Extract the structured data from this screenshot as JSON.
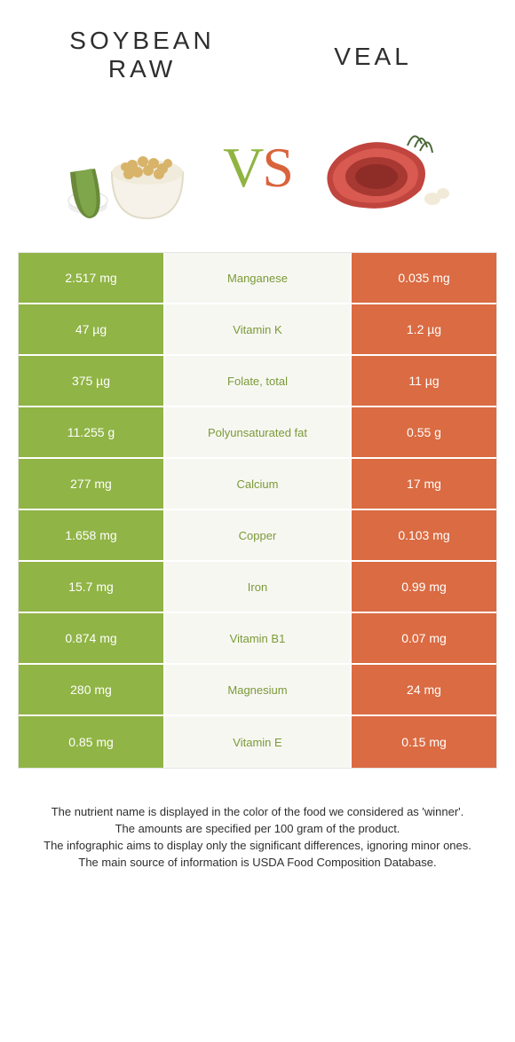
{
  "colors": {
    "left": "#90b445",
    "right": "#da6b42",
    "mid_bg": "#f7f7f2",
    "nutrient_left_winner": "#7a9a38",
    "nutrient_right_winner": "#c25a34"
  },
  "header": {
    "left_line1": "SOYBEAN",
    "left_line2": "RAW",
    "right": "VEAL",
    "vs_v": "V",
    "vs_s": "S"
  },
  "rows": [
    {
      "left": "2.517 mg",
      "nutrient": "Manganese",
      "right": "0.035 mg",
      "winner": "left"
    },
    {
      "left": "47 µg",
      "nutrient": "Vitamin K",
      "right": "1.2 µg",
      "winner": "left"
    },
    {
      "left": "375 µg",
      "nutrient": "Folate, total",
      "right": "11 µg",
      "winner": "left"
    },
    {
      "left": "11.255 g",
      "nutrient": "Polyunsaturated fat",
      "right": "0.55 g",
      "winner": "left"
    },
    {
      "left": "277 mg",
      "nutrient": "Calcium",
      "right": "17 mg",
      "winner": "left"
    },
    {
      "left": "1.658 mg",
      "nutrient": "Copper",
      "right": "0.103 mg",
      "winner": "left"
    },
    {
      "left": "15.7 mg",
      "nutrient": "Iron",
      "right": "0.99 mg",
      "winner": "left"
    },
    {
      "left": "0.874 mg",
      "nutrient": "Vitamin B1",
      "right": "0.07 mg",
      "winner": "left"
    },
    {
      "left": "280 mg",
      "nutrient": "Magnesium",
      "right": "24 mg",
      "winner": "left"
    },
    {
      "left": "0.85 mg",
      "nutrient": "Vitamin E",
      "right": "0.15 mg",
      "winner": "left"
    }
  ],
  "footer": {
    "line1": "The nutrient name is displayed in the color of the food we considered as 'winner'.",
    "line2": "The amounts are specified per 100 gram of the product.",
    "line3": "The infographic aims to display only the significant differences, ignoring minor ones.",
    "line4": "The main source of information is USDA Food Composition Database."
  }
}
